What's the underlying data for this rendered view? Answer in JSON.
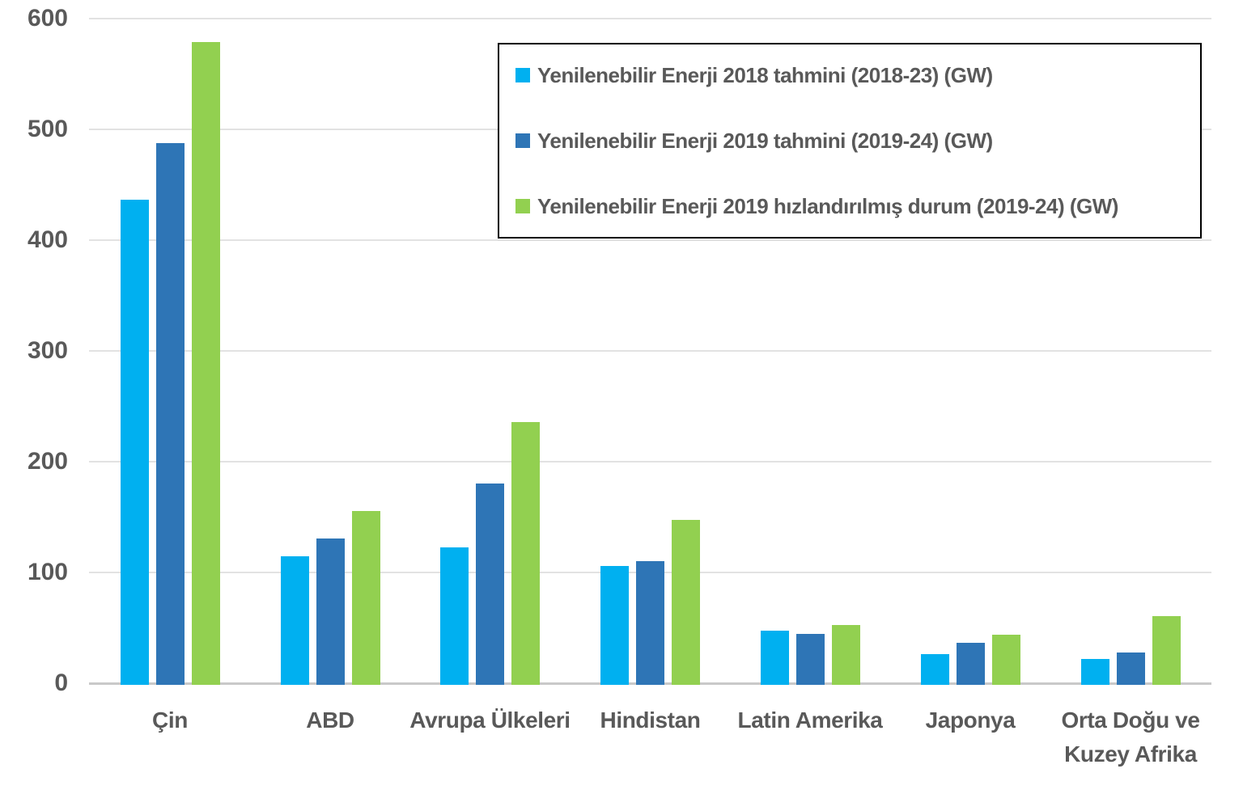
{
  "chart_data": {
    "type": "bar",
    "title": "",
    "xlabel": "",
    "ylabel": "",
    "categories": [
      "Çin",
      "ABD",
      "Avrupa Ülkeleri",
      "Hindistan",
      "Latin Amerika",
      "Japonya",
      "Orta Doğu ve Kuzey Afrika"
    ],
    "series": [
      {
        "name": "Yenilenebilir Enerji 2018 tahmini (2018-23) (GW)",
        "color": "#00B0F0",
        "values": [
          438,
          116,
          124,
          107,
          49,
          28,
          23
        ]
      },
      {
        "name": "Yenilenebilir Enerji 2019 tahmini (2019-24) (GW)",
        "color": "#2E75B6",
        "values": [
          489,
          132,
          182,
          112,
          46,
          38,
          29
        ]
      },
      {
        "name": "Yenilenebilir Enerji 2019 hızlandırılmış durum (2019-24) (GW)",
        "color": "#92D050",
        "values": [
          580,
          157,
          237,
          149,
          54,
          45,
          62
        ]
      }
    ],
    "ylim": [
      0,
      600
    ],
    "y_ticks": [
      "0",
      "100",
      "200",
      "300",
      "400",
      "500",
      "600"
    ],
    "grid": true,
    "legend_position": "top-right",
    "legend_border": "#000000"
  },
  "colors": {
    "background": "#FFFFFF",
    "text": "#595959",
    "gridline": "#E2E2E2",
    "zero_line": "#C9C9C9"
  }
}
